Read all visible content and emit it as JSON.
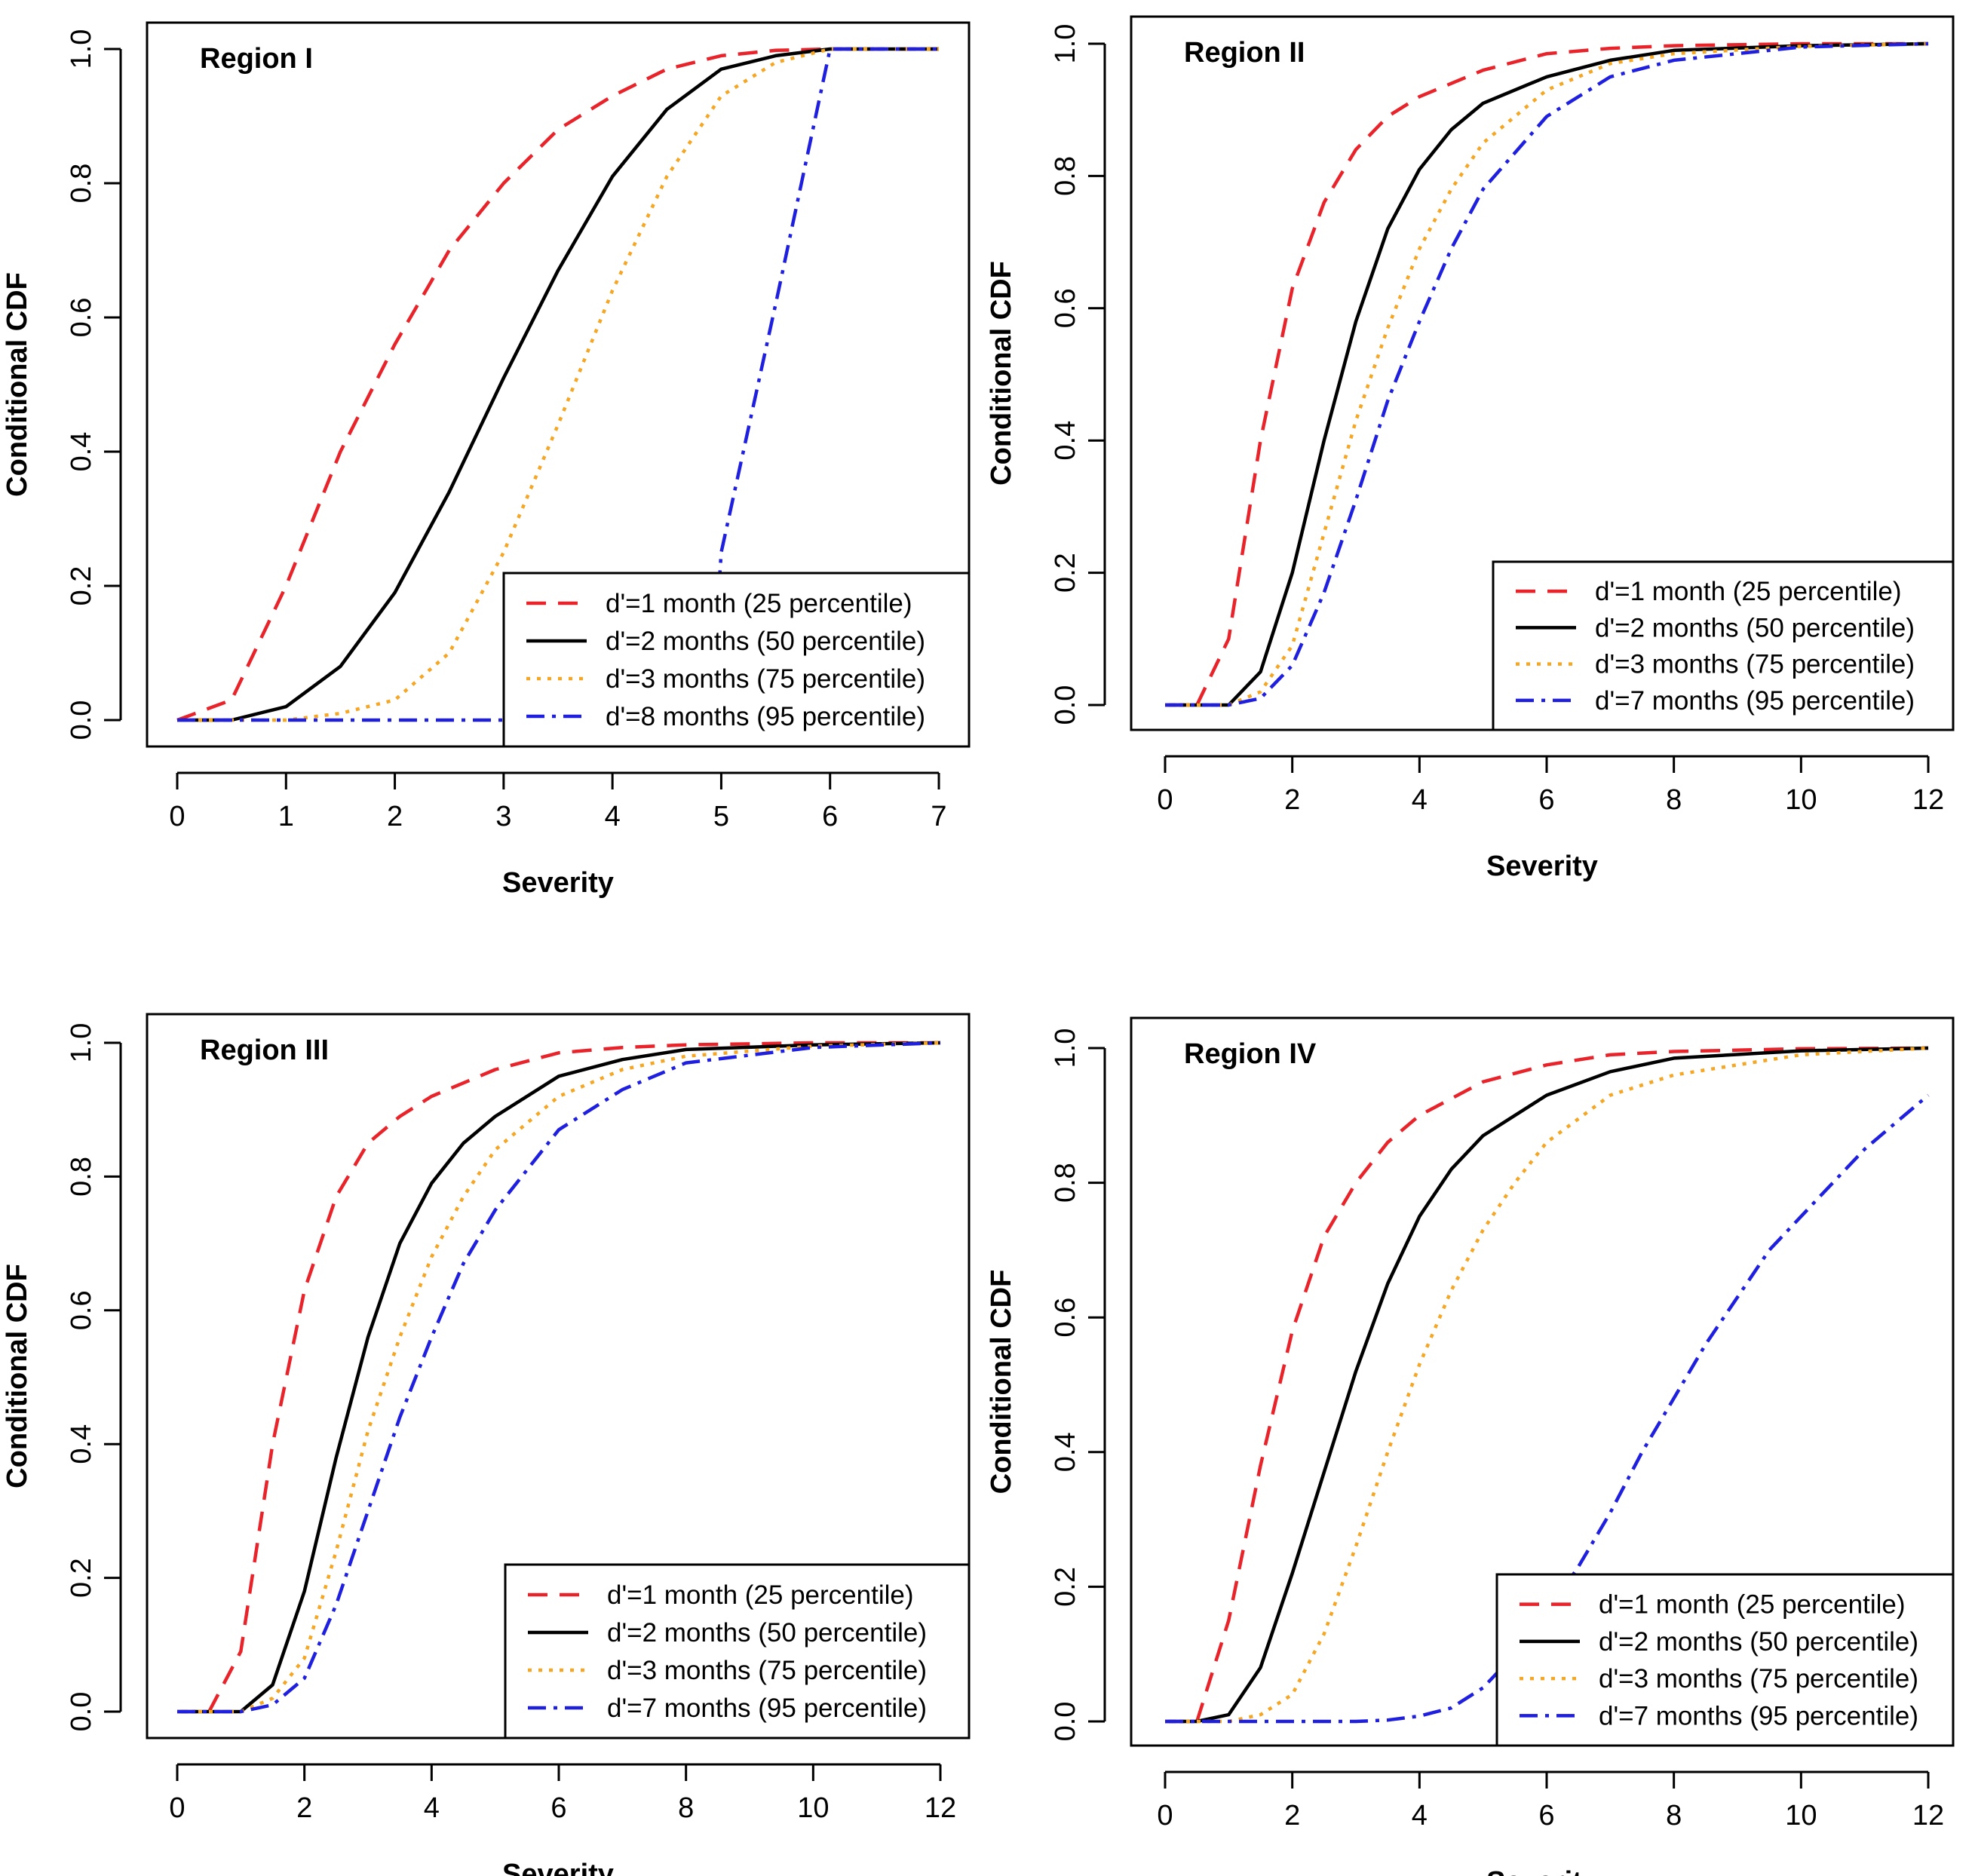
{
  "chart_data": [
    {
      "type": "line",
      "title": "Region I",
      "xlabel": "Severity",
      "ylabel": "Conditional CDF",
      "xlim": [
        0,
        7
      ],
      "ylim": [
        0,
        1
      ],
      "xticks": [
        0,
        1,
        2,
        3,
        4,
        5,
        6,
        7
      ],
      "yticks": [
        0.0,
        0.2,
        0.4,
        0.6,
        0.8,
        1.0
      ],
      "xtick_labels": [
        "0",
        "1",
        "2",
        "3",
        "4",
        "5",
        "6",
        "7"
      ],
      "ytick_labels": [
        "0.0",
        "0.2",
        "0.4",
        "0.6",
        "0.8",
        "1.0"
      ],
      "legend_position": "bottom-right",
      "grid": false,
      "series": [
        {
          "name": "d'=1 month (25 percentile)",
          "style": "dashed",
          "color": "#e8232a",
          "x": [
            0,
            0.5,
            1,
            1.5,
            2,
            2.5,
            3,
            3.5,
            4,
            4.5,
            5,
            5.5,
            6,
            7
          ],
          "y": [
            0,
            0.03,
            0.2,
            0.4,
            0.56,
            0.7,
            0.8,
            0.88,
            0.93,
            0.97,
            0.99,
            0.998,
            1.0,
            1.0
          ]
        },
        {
          "name": "d'=2 months (50 percentile)",
          "style": "solid",
          "color": "#000000",
          "x": [
            0,
            0.5,
            1,
            1.5,
            2,
            2.5,
            3,
            3.5,
            4,
            4.5,
            5,
            5.5,
            6,
            7
          ],
          "y": [
            0,
            0,
            0.02,
            0.08,
            0.19,
            0.34,
            0.51,
            0.67,
            0.81,
            0.91,
            0.97,
            0.99,
            1.0,
            1.0
          ]
        },
        {
          "name": "d'=3 months (75 percentile)",
          "style": "dotted",
          "color": "#f5a623",
          "x": [
            0,
            1,
            1.5,
            2,
            2.5,
            3,
            3.5,
            4,
            4.5,
            5,
            5.5,
            6,
            7
          ],
          "y": [
            0,
            0,
            0.01,
            0.03,
            0.1,
            0.25,
            0.44,
            0.64,
            0.81,
            0.93,
            0.98,
            1.0,
            1.0
          ]
        },
        {
          "name": "d'=8 months (95 percentile)",
          "style": "dashdot",
          "color": "#1f1fe0",
          "x": [
            0,
            4.9,
            5.0,
            5.5,
            6.0,
            7.0
          ],
          "y": [
            0,
            0,
            0.25,
            0.62,
            1.0,
            1.0
          ]
        }
      ]
    },
    {
      "type": "line",
      "title": "Region II",
      "xlabel": "Severity",
      "ylabel": "Conditional CDF",
      "xlim": [
        0,
        12
      ],
      "ylim": [
        0,
        1
      ],
      "xticks": [
        0,
        2,
        4,
        6,
        8,
        10,
        12
      ],
      "yticks": [
        0.0,
        0.2,
        0.4,
        0.6,
        0.8,
        1.0
      ],
      "xtick_labels": [
        "0",
        "2",
        "4",
        "6",
        "8",
        "10",
        "12"
      ],
      "ytick_labels": [
        "0.0",
        "0.2",
        "0.4",
        "0.6",
        "0.8",
        "1.0"
      ],
      "legend_position": "bottom-right",
      "grid": false,
      "series": [
        {
          "name": "d'=1 month (25 percentile)",
          "style": "dashed",
          "color": "#e8232a",
          "x": [
            0,
            0.5,
            1,
            1.5,
            2,
            2.5,
            3,
            3.5,
            4,
            5,
            6,
            7,
            8,
            10,
            12
          ],
          "y": [
            0,
            0,
            0.1,
            0.4,
            0.63,
            0.76,
            0.84,
            0.89,
            0.92,
            0.96,
            0.985,
            0.993,
            0.997,
            1.0,
            1.0
          ]
        },
        {
          "name": "d'=2 months (50 percentile)",
          "style": "solid",
          "color": "#000000",
          "x": [
            0,
            1,
            1.5,
            2,
            2.5,
            3,
            3.5,
            4,
            4.5,
            5,
            6,
            7,
            8,
            10,
            12
          ],
          "y": [
            0,
            0,
            0.05,
            0.2,
            0.4,
            0.58,
            0.72,
            0.81,
            0.87,
            0.91,
            0.95,
            0.975,
            0.99,
            0.997,
            1.0
          ]
        },
        {
          "name": "d'=3 months (75 percentile)",
          "style": "dotted",
          "color": "#f5a623",
          "x": [
            0,
            1,
            1.5,
            2,
            2.5,
            3,
            3.5,
            4,
            4.5,
            5,
            6,
            7,
            8,
            10,
            12
          ],
          "y": [
            0,
            0,
            0.02,
            0.09,
            0.26,
            0.43,
            0.57,
            0.69,
            0.78,
            0.85,
            0.93,
            0.97,
            0.985,
            0.996,
            1.0
          ]
        },
        {
          "name": "d'=7 months (95 percentile)",
          "style": "dashdot",
          "color": "#1f1fe0",
          "x": [
            0,
            1,
            1.5,
            2,
            2.5,
            3,
            3.5,
            4,
            4.5,
            5,
            6,
            7,
            8,
            10,
            12
          ],
          "y": [
            0,
            0,
            0.01,
            0.06,
            0.17,
            0.31,
            0.46,
            0.58,
            0.69,
            0.78,
            0.89,
            0.95,
            0.975,
            0.995,
            1.0
          ]
        }
      ]
    },
    {
      "type": "line",
      "title": "Region III",
      "xlabel": "Severity",
      "ylabel": "Conditional CDF",
      "xlim": [
        0,
        12
      ],
      "ylim": [
        0,
        1
      ],
      "xticks": [
        0,
        2,
        4,
        6,
        8,
        10,
        12
      ],
      "yticks": [
        0.0,
        0.2,
        0.4,
        0.6,
        0.8,
        1.0
      ],
      "xtick_labels": [
        "0",
        "2",
        "4",
        "6",
        "8",
        "10",
        "12"
      ],
      "ytick_labels": [
        "0.0",
        "0.2",
        "0.4",
        "0.6",
        "0.8",
        "1.0"
      ],
      "legend_position": "bottom-right",
      "grid": false,
      "series": [
        {
          "name": "d'=1 month (25 percentile)",
          "style": "dashed",
          "color": "#e8232a",
          "x": [
            0,
            0.5,
            1,
            1.5,
            2,
            2.5,
            3,
            3.5,
            4,
            5,
            6,
            7,
            8,
            10,
            12
          ],
          "y": [
            0,
            0,
            0.09,
            0.4,
            0.63,
            0.77,
            0.85,
            0.89,
            0.92,
            0.96,
            0.985,
            0.993,
            0.997,
            1.0,
            1.0
          ]
        },
        {
          "name": "d'=2 months (50 percentile)",
          "style": "solid",
          "color": "#000000",
          "x": [
            0,
            1,
            1.5,
            2,
            2.5,
            3,
            3.5,
            4,
            4.5,
            5,
            6,
            7,
            8,
            10,
            12
          ],
          "y": [
            0,
            0,
            0.04,
            0.18,
            0.38,
            0.56,
            0.7,
            0.79,
            0.85,
            0.89,
            0.95,
            0.975,
            0.99,
            0.997,
            1.0
          ]
        },
        {
          "name": "d'=3 months (75 percentile)",
          "style": "dotted",
          "color": "#f5a623",
          "x": [
            0,
            1,
            1.5,
            2,
            2.5,
            3,
            3.5,
            4,
            4.5,
            5,
            6,
            7,
            8,
            10,
            12
          ],
          "y": [
            0,
            0,
            0.02,
            0.08,
            0.24,
            0.42,
            0.56,
            0.68,
            0.77,
            0.84,
            0.92,
            0.96,
            0.98,
            0.995,
            1.0
          ]
        },
        {
          "name": "d'=7 months (95 percentile)",
          "style": "dashdot",
          "color": "#1f1fe0",
          "x": [
            0,
            1,
            1.5,
            2,
            2.5,
            3,
            3.5,
            4,
            4.5,
            5,
            6,
            7,
            8,
            10,
            12
          ],
          "y": [
            0,
            0,
            0.01,
            0.05,
            0.16,
            0.3,
            0.44,
            0.56,
            0.67,
            0.75,
            0.87,
            0.93,
            0.97,
            0.993,
            1.0
          ]
        }
      ]
    },
    {
      "type": "line",
      "title": "Region IV",
      "xlabel": "Severity",
      "ylabel": "Conditional CDF",
      "xlim": [
        0,
        12
      ],
      "ylim": [
        0,
        1
      ],
      "xticks": [
        0,
        2,
        4,
        6,
        8,
        10,
        12
      ],
      "yticks": [
        0.0,
        0.2,
        0.4,
        0.6,
        0.8,
        1.0
      ],
      "xtick_labels": [
        "0",
        "2",
        "4",
        "6",
        "8",
        "10",
        "12"
      ],
      "ytick_labels": [
        "0.0",
        "0.2",
        "0.4",
        "0.6",
        "0.8",
        "1.0"
      ],
      "legend_position": "bottom-right",
      "grid": false,
      "series": [
        {
          "name": "d'=1 month (25 percentile)",
          "style": "dashed",
          "color": "#e8232a",
          "x": [
            0,
            0.5,
            1,
            1.5,
            2,
            2.5,
            3,
            3.5,
            4,
            5,
            6,
            7,
            8,
            10,
            12
          ],
          "y": [
            0,
            0,
            0.15,
            0.38,
            0.58,
            0.72,
            0.8,
            0.86,
            0.9,
            0.95,
            0.975,
            0.99,
            0.995,
            0.999,
            1.0
          ]
        },
        {
          "name": "d'=2 months (50 percentile)",
          "style": "solid",
          "color": "#000000",
          "x": [
            0,
            0.5,
            1,
            1.5,
            2,
            2.5,
            3,
            3.5,
            4,
            4.5,
            5,
            6,
            7,
            8,
            10,
            12
          ],
          "y": [
            0,
            0,
            0.01,
            0.08,
            0.22,
            0.37,
            0.52,
            0.65,
            0.75,
            0.82,
            0.87,
            0.93,
            0.965,
            0.985,
            0.996,
            1.0
          ]
        },
        {
          "name": "d'=3 months (75 percentile)",
          "style": "dotted",
          "color": "#f5a623",
          "x": [
            0,
            1,
            1.5,
            2,
            2.5,
            3,
            3.5,
            4,
            4.5,
            5,
            5.5,
            6,
            7,
            8,
            10,
            12
          ],
          "y": [
            0,
            0,
            0.01,
            0.04,
            0.13,
            0.26,
            0.4,
            0.53,
            0.64,
            0.73,
            0.8,
            0.86,
            0.93,
            0.96,
            0.99,
            1.0
          ]
        },
        {
          "name": "d'=7 months (95 percentile)",
          "style": "dashdot",
          "color": "#1f1fe0",
          "x": [
            0,
            3,
            3.5,
            4,
            4.5,
            5,
            5.5,
            6,
            6.5,
            7,
            7.5,
            8,
            8.5,
            9,
            9.5,
            10,
            10.5,
            11,
            11.5,
            12
          ],
          "y": [
            0,
            0,
            0.002,
            0.008,
            0.02,
            0.05,
            0.1,
            0.16,
            0.23,
            0.31,
            0.4,
            0.48,
            0.56,
            0.63,
            0.7,
            0.75,
            0.8,
            0.85,
            0.89,
            0.93
          ]
        }
      ]
    }
  ]
}
